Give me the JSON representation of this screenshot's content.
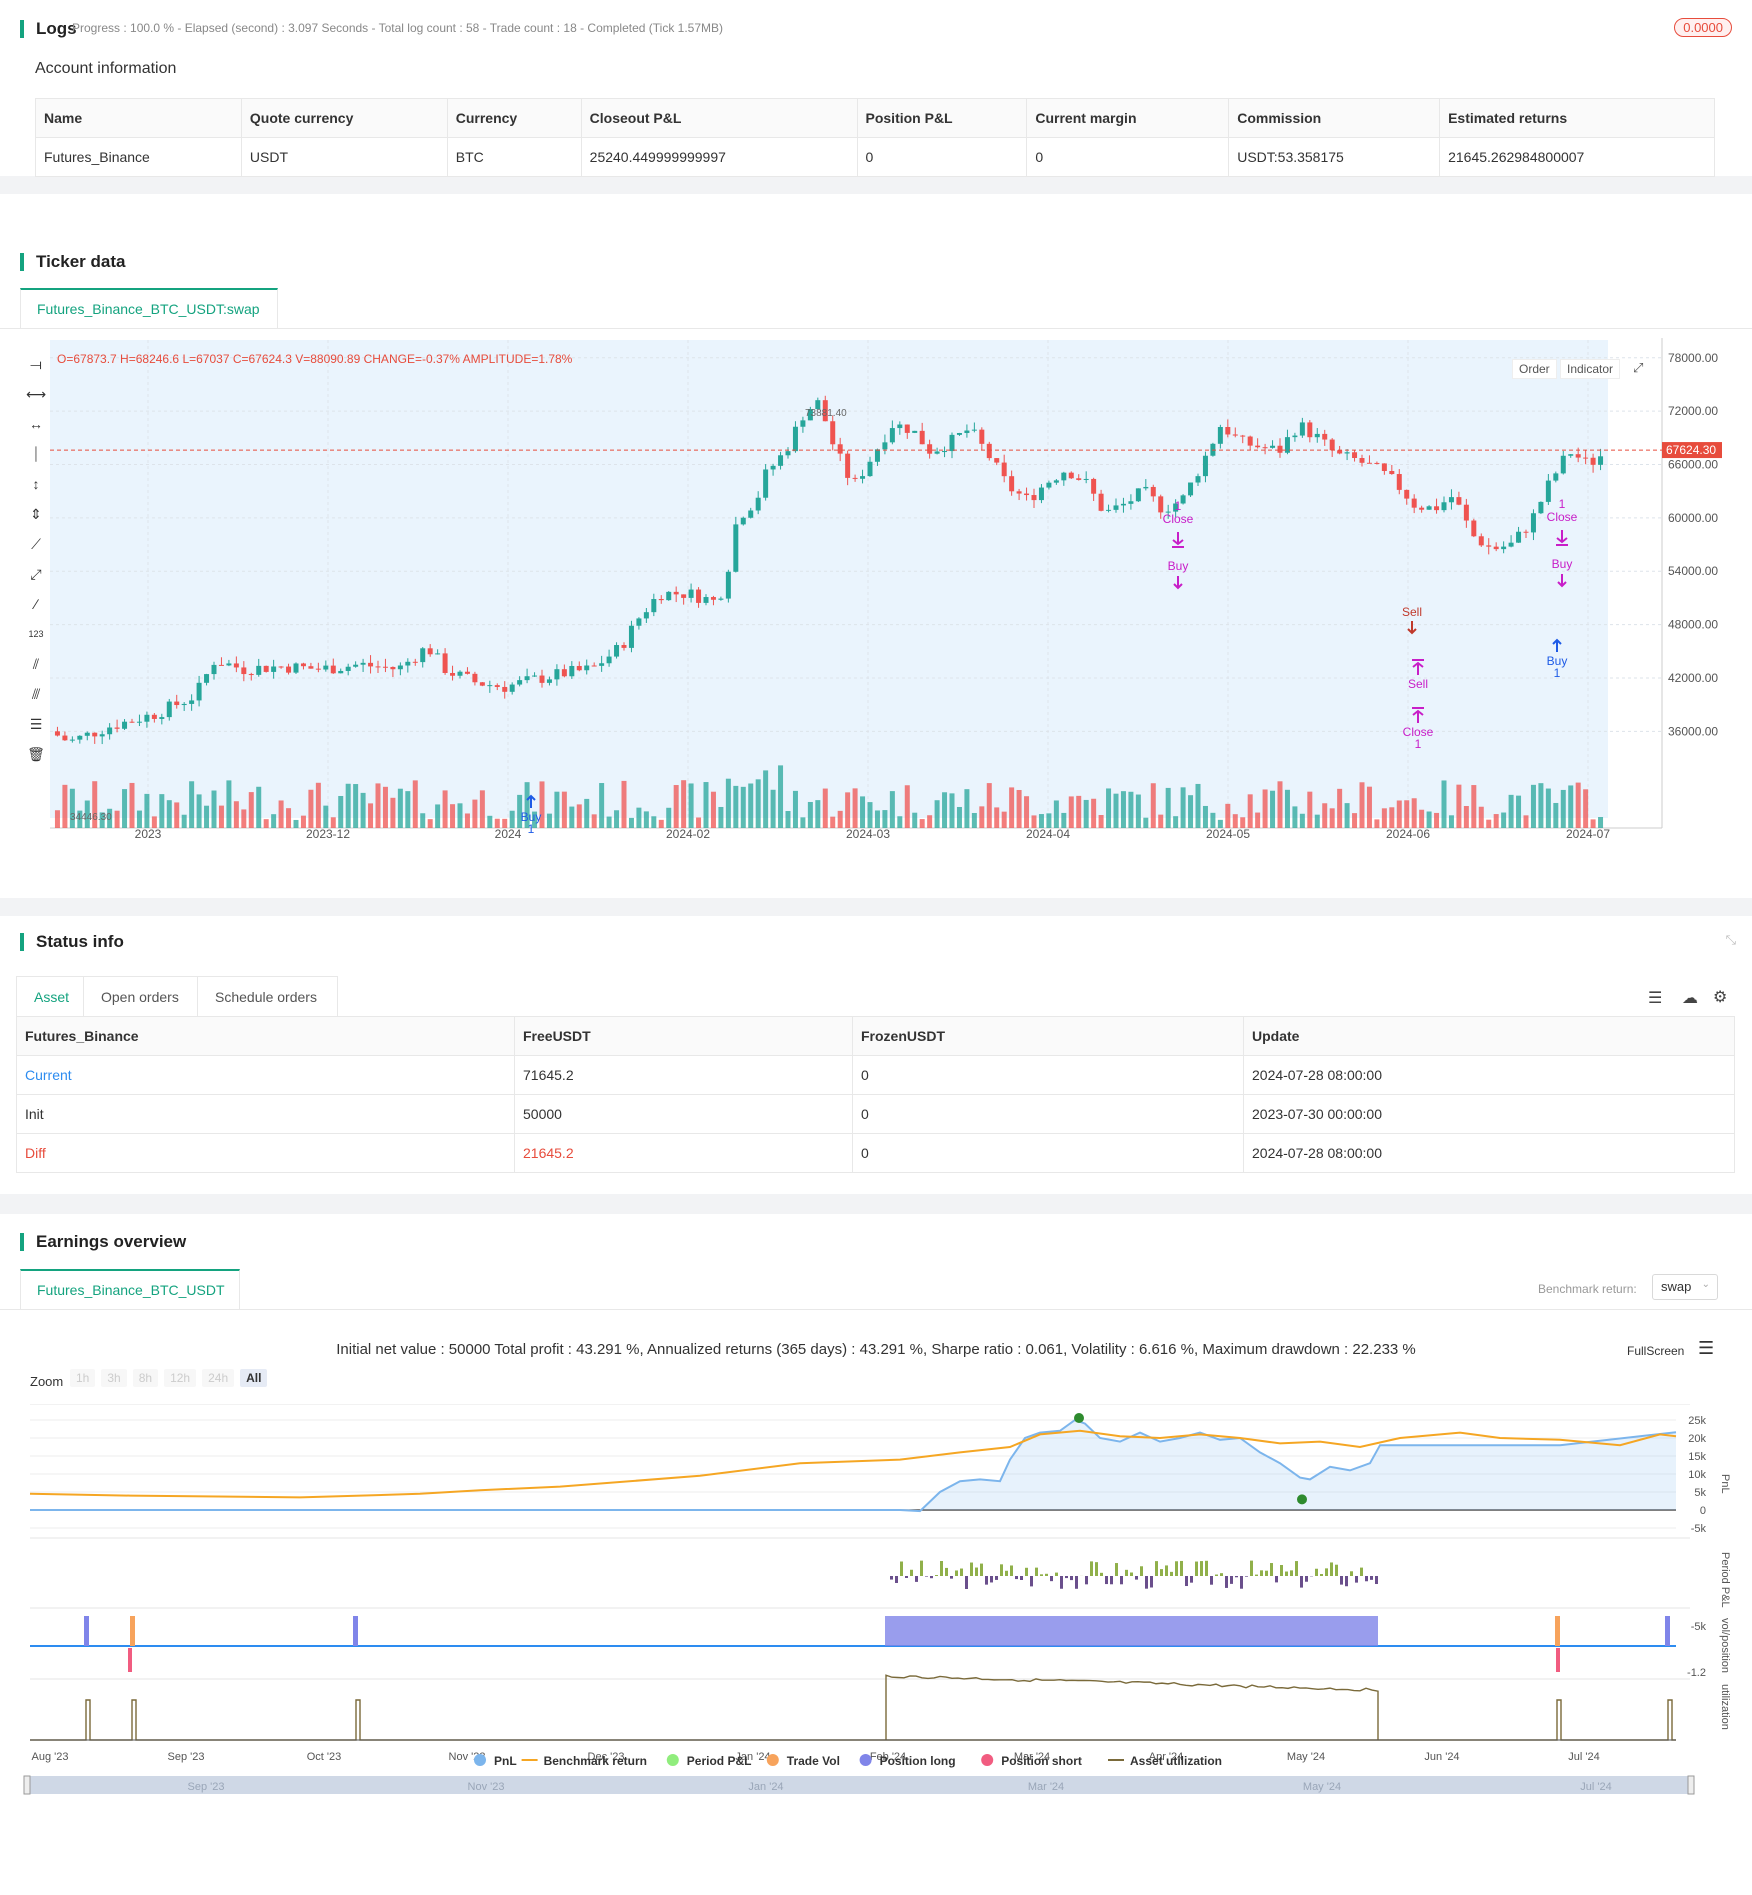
{
  "logs": {
    "title": "Logs",
    "status": "Progress : 100.0 % - Elapsed (second) : 3.097  Seconds - Total log count : 58 - Trade count : 18 - Completed (Tick 1.57MB)",
    "badge": "0.0000"
  },
  "account": {
    "title": "Account information",
    "headers": [
      "Name",
      "Quote currency",
      "Currency",
      "Closeout P&L",
      "Position P&L",
      "Current margin",
      "Commission",
      "Estimated returns"
    ],
    "row": [
      "Futures_Binance",
      "USDT",
      "BTC",
      "25240.449999999997",
      "0",
      "0",
      "USDT:53.358175",
      "21645.262984800007"
    ]
  },
  "ticker": {
    "title": "Ticker data",
    "tab": "Futures_Binance_BTC_USDT:swap",
    "ohlc": "O=67873.7 H=68246.6 L=67037 C=67624.3 V=88090.89 CHANGE=-0.37% AMPLITUDE=1.78%",
    "buttons": [
      "Order",
      "Indicator"
    ],
    "price_label": "67624.30",
    "high_label": "73881.40",
    "low_label": "34446.30",
    "y_ticks": [
      "78000.00",
      "72000.00",
      "66000.00",
      "60000.00",
      "54000.00",
      "48000.00",
      "42000.00",
      "36000.00"
    ],
    "x_ticks": [
      "2023",
      "2023-12",
      "2024",
      "2024-02",
      "2024-03",
      "2024-04",
      "2024-05",
      "2024-06",
      "2024-07"
    ],
    "markers": {
      "buy": "Buy",
      "sell": "Sell",
      "close": "Close",
      "qty": "1"
    },
    "colors": {
      "up": "#26a69a",
      "down": "#ef5350",
      "bg": "#eaf4fd",
      "marker": "#c81ec8",
      "buy": "#1e5be6"
    }
  },
  "status": {
    "title": "Status info",
    "tabs": [
      "Asset",
      "Open orders",
      "Schedule orders"
    ],
    "headers": [
      "Futures_Binance",
      "FreeUSDT",
      "FrozenUSDT",
      "Update"
    ],
    "rows": [
      [
        "Current",
        "71645.2",
        "0",
        "2024-07-28 08:00:00"
      ],
      [
        "Init",
        "50000",
        "0",
        "2023-07-30 00:00:00"
      ],
      [
        "Diff",
        "21645.2",
        "0",
        "2024-07-28 08:00:00"
      ]
    ]
  },
  "earnings": {
    "title": "Earnings overview",
    "tab": "Futures_Binance_BTC_USDT",
    "benchmark_label": "Benchmark return:",
    "benchmark_value": "swap",
    "summary": "Initial net value : 50000 Total profit : 43.291 %, Annualized returns (365 days) : 43.291 %, Sharpe ratio : 0.061, Volatility : 6.616 %, Maximum drawdown : 22.233 %",
    "fullscreen": "FullScreen",
    "zoom_label": "Zoom",
    "zoom_options": [
      "1h",
      "3h",
      "8h",
      "12h",
      "24h",
      "All"
    ],
    "pnl_ticks": [
      "25k",
      "20k",
      "15k",
      "10k",
      "5k",
      "0",
      "-5k"
    ],
    "period_ticks": [
      "-5k"
    ],
    "pos_ticks": [
      "-1.2"
    ],
    "axis_titles": [
      "PnL",
      "Period P&L",
      "vol/position",
      "utilization"
    ],
    "x_ticks": [
      "Aug '23",
      "Sep '23",
      "Oct '23",
      "Nov '23",
      "Dec '23",
      "Jan '24",
      "Feb '24",
      "Mar '24",
      "Apr '24",
      "May '24",
      "Jun '24",
      "Jul '24"
    ],
    "nav_ticks": [
      "Sep '23",
      "Nov '23",
      "Jan '24",
      "Mar '24",
      "May '24",
      "Jul '24"
    ],
    "legend": [
      {
        "name": "PnL",
        "color": "#7cb5ec"
      },
      {
        "name": "Benchmark return",
        "color": "#f5a623"
      },
      {
        "name": "Period P&L",
        "color": "#90ed7d"
      },
      {
        "name": "Trade Vol",
        "color": "#f7a35c"
      },
      {
        "name": "Position long",
        "color": "#8085e9"
      },
      {
        "name": "Position short",
        "color": "#f15c80"
      },
      {
        "name": "Asset utilization",
        "color": "#7a6a3a"
      }
    ]
  }
}
